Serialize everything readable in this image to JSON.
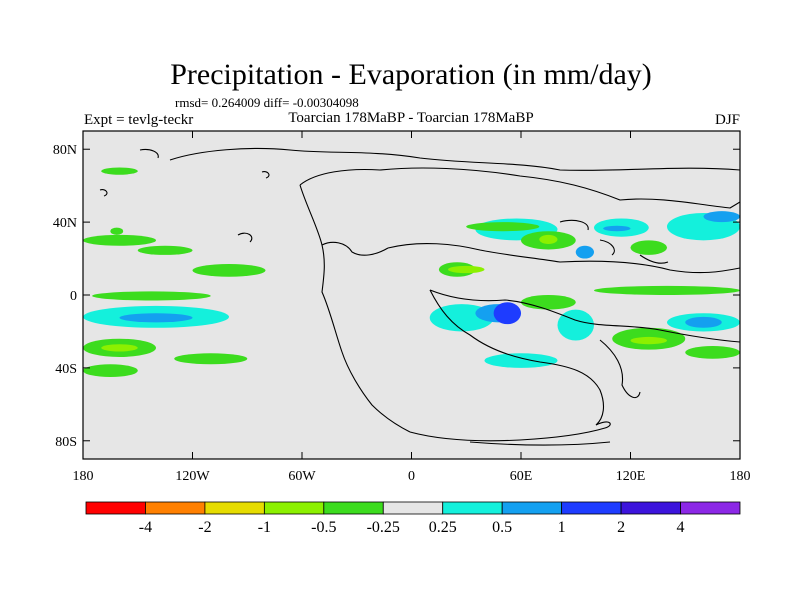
{
  "chart_data": {
    "type": "heatmap",
    "title": "Precipitation - Evaporation (in mm/day)",
    "stats_text": "rmsd= 0.264009 diff= -0.00304098",
    "left_label": "Expt = tevlg-teckr",
    "center_label": "Toarcian 178MaBP - Toarcian 178MaBP",
    "right_label": "DJF",
    "x_ticks": [
      {
        "value": -180,
        "label": "180"
      },
      {
        "value": -120,
        "label": "120W"
      },
      {
        "value": -60,
        "label": "60W"
      },
      {
        "value": 0,
        "label": "0"
      },
      {
        "value": 60,
        "label": "60E"
      },
      {
        "value": 120,
        "label": "120E"
      },
      {
        "value": 180,
        "label": "180"
      }
    ],
    "y_ticks": [
      {
        "value": 80,
        "label": "80N"
      },
      {
        "value": 40,
        "label": "40N"
      },
      {
        "value": 0,
        "label": "0"
      },
      {
        "value": -40,
        "label": "40S"
      },
      {
        "value": -80,
        "label": "80S"
      }
    ],
    "xlim": [
      -180,
      180
    ],
    "ylim": [
      -90,
      90
    ],
    "levels": [
      -4,
      -2,
      -1,
      -0.5,
      -0.25,
      0.25,
      0.5,
      1,
      2,
      4
    ],
    "level_labels": [
      "-4",
      "-2",
      "-1",
      "-0.5",
      "-0.25",
      "0.25",
      "0.5",
      "1",
      "2",
      "4"
    ],
    "colors": [
      "#ff0000",
      "#ff8000",
      "#e6dc00",
      "#8cf000",
      "#3cdc1e",
      "#e6e6e6",
      "#14f0dc",
      "#14a0f0",
      "#1e3cff",
      "#3c14dc",
      "#8c28e6"
    ],
    "background_color": "#e6e6e6",
    "anomaly_regions": [
      {
        "lon": [
          -180,
          -140
        ],
        "lat": [
          27,
          33
        ],
        "bin": 4
      },
      {
        "lon": [
          -150,
          -120
        ],
        "lat": [
          22,
          27
        ],
        "bin": 4
      },
      {
        "lon": [
          -120,
          -80
        ],
        "lat": [
          10,
          17
        ],
        "bin": 4
      },
      {
        "lon": [
          -175,
          -110
        ],
        "lat": [
          -3,
          2
        ],
        "bin": 4
      },
      {
        "lon": [
          -180,
          -100
        ],
        "lat": [
          -18,
          -6
        ],
        "bin": 6
      },
      {
        "lon": [
          -160,
          -120
        ],
        "lat": [
          -15,
          -10
        ],
        "bin": 7
      },
      {
        "lon": [
          -180,
          -140
        ],
        "lat": [
          -34,
          -24
        ],
        "bin": 4
      },
      {
        "lon": [
          -170,
          -150
        ],
        "lat": [
          -31,
          -27
        ],
        "bin": 3
      },
      {
        "lon": [
          -180,
          -150
        ],
        "lat": [
          -45,
          -38
        ],
        "bin": 4
      },
      {
        "lon": [
          -130,
          -90
        ],
        "lat": [
          -38,
          -32
        ],
        "bin": 4
      },
      {
        "lon": [
          -170,
          -150
        ],
        "lat": [
          66,
          70
        ],
        "bin": 4
      },
      {
        "lon": [
          -165,
          -158
        ],
        "lat": [
          33,
          37
        ],
        "bin": 4
      },
      {
        "lon": [
          15,
          35
        ],
        "lat": [
          10,
          18
        ],
        "bin": 4
      },
      {
        "lon": [
          20,
          40
        ],
        "lat": [
          12,
          16
        ],
        "bin": 3
      },
      {
        "lon": [
          35,
          80
        ],
        "lat": [
          30,
          42
        ],
        "bin": 6
      },
      {
        "lon": [
          60,
          90
        ],
        "lat": [
          25,
          35
        ],
        "bin": 4
      },
      {
        "lon": [
          70,
          80
        ],
        "lat": [
          28,
          33
        ],
        "bin": 3
      },
      {
        "lon": [
          90,
          100
        ],
        "lat": [
          20,
          27
        ],
        "bin": 7
      },
      {
        "lon": [
          100,
          130
        ],
        "lat": [
          32,
          42
        ],
        "bin": 6
      },
      {
        "lon": [
          105,
          120
        ],
        "lat": [
          35,
          38
        ],
        "bin": 7
      },
      {
        "lon": [
          120,
          140
        ],
        "lat": [
          22,
          30
        ],
        "bin": 4
      },
      {
        "lon": [
          140,
          180
        ],
        "lat": [
          30,
          45
        ],
        "bin": 6
      },
      {
        "lon": [
          160,
          180
        ],
        "lat": [
          40,
          46
        ],
        "bin": 7
      },
      {
        "lon": [
          10,
          45
        ],
        "lat": [
          -20,
          -5
        ],
        "bin": 6
      },
      {
        "lon": [
          35,
          60
        ],
        "lat": [
          -15,
          -5
        ],
        "bin": 7
      },
      {
        "lon": [
          45,
          60
        ],
        "lat": [
          -16,
          -4
        ],
        "bin": 8
      },
      {
        "lon": [
          60,
          90
        ],
        "lat": [
          -8,
          0
        ],
        "bin": 4
      },
      {
        "lon": [
          80,
          100
        ],
        "lat": [
          -25,
          -8
        ],
        "bin": 6
      },
      {
        "lon": [
          100,
          180
        ],
        "lat": [
          0,
          5
        ],
        "bin": 4
      },
      {
        "lon": [
          140,
          180
        ],
        "lat": [
          -20,
          -10
        ],
        "bin": 6
      },
      {
        "lon": [
          150,
          170
        ],
        "lat": [
          -18,
          -12
        ],
        "bin": 7
      },
      {
        "lon": [
          110,
          150
        ],
        "lat": [
          -30,
          -18
        ],
        "bin": 4
      },
      {
        "lon": [
          120,
          140
        ],
        "lat": [
          -27,
          -23
        ],
        "bin": 3
      },
      {
        "lon": [
          150,
          180
        ],
        "lat": [
          -35,
          -28
        ],
        "bin": 4
      },
      {
        "lon": [
          40,
          80
        ],
        "lat": [
          -40,
          -32
        ],
        "bin": 6
      },
      {
        "lon": [
          30,
          70
        ],
        "lat": [
          35,
          40
        ],
        "bin": 4
      }
    ]
  }
}
